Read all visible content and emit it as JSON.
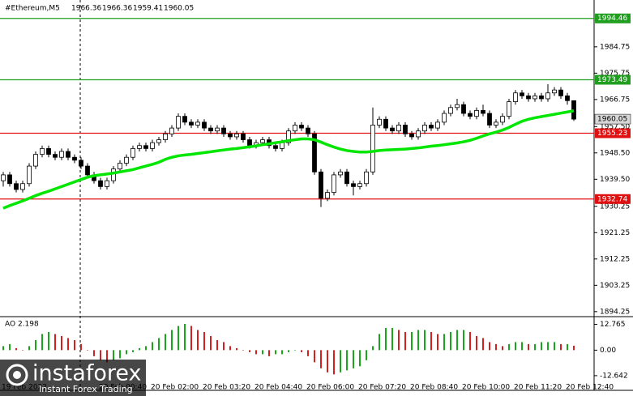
{
  "chart_data": [
    {
      "type": "candlestick",
      "title": "#Ethereum,M5",
      "categories": [
        "19 Feb 2022",
        null,
        null,
        null,
        null,
        null,
        null,
        null,
        null,
        null,
        null,
        null,
        null,
        null,
        null,
        null,
        "20 Feb 00:40",
        null,
        null,
        null,
        null,
        null,
        null,
        null,
        "20 Feb 02:00",
        null,
        null,
        null,
        null,
        null,
        null,
        null,
        "20 Feb 03:20",
        null,
        null,
        null,
        null,
        null,
        null,
        null,
        "20 Feb 04:40",
        null,
        null,
        null,
        null,
        null,
        null,
        null,
        "20 Feb 06:00",
        null,
        null,
        null,
        null,
        null,
        null,
        null,
        "20 Feb 07:20",
        null,
        null,
        null,
        null,
        null,
        null,
        null,
        "20 Feb 08:40",
        null,
        null,
        null,
        null,
        null,
        null,
        null,
        "20 Feb 10:00",
        null,
        null,
        null,
        null,
        null,
        null,
        null,
        "20 Feb 11:20",
        null,
        null,
        null,
        null,
        null,
        null,
        null,
        "20 Feb 12:40"
      ],
      "open": [
        1939,
        1941,
        1938,
        1936,
        1938,
        1944,
        1948,
        1950,
        1948,
        1947,
        1949,
        1947,
        1946,
        1944,
        1941,
        1939,
        1937,
        1939,
        1943,
        1945,
        1947,
        1950,
        1951,
        1950,
        1952,
        1953,
        1955,
        1957,
        1961,
        1959,
        1958,
        1959,
        1957,
        1956,
        1957,
        1955,
        1954,
        1955,
        1953,
        1951,
        1952,
        1953,
        1951,
        1950,
        1952,
        1956,
        1958,
        1957,
        1955,
        1942,
        1933,
        1935,
        1941,
        1942,
        1938,
        1937,
        1938,
        1942,
        1958,
        1960,
        1957,
        1956,
        1958,
        1955,
        1954,
        1956,
        1958,
        1957,
        1959,
        1962,
        1964,
        1965,
        1962,
        1961,
        1963,
        1962,
        1958,
        1959,
        1961,
        1966,
        1969,
        1968,
        1967,
        1968,
        1967,
        1969,
        1970,
        1968,
        1966.36
      ],
      "high": [
        1942,
        1942,
        1939,
        1939,
        1945,
        1949,
        1951,
        1951,
        1949,
        1950,
        1950,
        1948,
        1947,
        1945,
        1942,
        1940,
        1940,
        1944,
        1946,
        1948,
        1951,
        1952,
        1952,
        1953,
        1954,
        1956,
        1958,
        1962,
        1962,
        1960,
        1960,
        1960,
        1958,
        1958,
        1958,
        1956,
        1956,
        1956,
        1954,
        1953,
        1954,
        1954,
        1952,
        1953,
        1957,
        1959,
        1959,
        1958,
        1956,
        1943,
        1936,
        1942,
        1943,
        1943,
        1939,
        1939,
        1943,
        1964,
        1961,
        1961,
        1958,
        1959,
        1959,
        1956,
        1957,
        1959,
        1959,
        1960,
        1963,
        1965,
        1967,
        1966,
        1963,
        1964,
        1965,
        1963,
        1960,
        1962,
        1967,
        1970,
        1970,
        1969,
        1969,
        1969,
        1972,
        1971,
        1971,
        1969,
        1966.36
      ],
      "low": [
        1937,
        1937,
        1935,
        1935,
        1937,
        1943,
        1947,
        1947,
        1946,
        1946,
        1946,
        1945,
        1943,
        1940,
        1938,
        1936,
        1936,
        1938,
        1942,
        1944,
        1946,
        1949,
        1949,
        1949,
        1951,
        1952,
        1954,
        1956,
        1958,
        1957,
        1957,
        1956,
        1955,
        1955,
        1954,
        1953,
        1953,
        1952,
        1950,
        1950,
        1951,
        1950,
        1949,
        1949,
        1951,
        1955,
        1956,
        1954,
        1941,
        1930,
        1932,
        1934,
        1940,
        1937,
        1934,
        1936,
        1937,
        1941,
        1957,
        1956,
        1955,
        1955,
        1954,
        1953,
        1953,
        1955,
        1956,
        1956,
        1958,
        1961,
        1963,
        1961,
        1960,
        1960,
        1961,
        1957,
        1957,
        1958,
        1960,
        1965,
        1967,
        1966,
        1966,
        1966,
        1966,
        1968,
        1967,
        1965,
        1959.41
      ],
      "close": [
        1941,
        1938,
        1936,
        1938,
        1944,
        1948,
        1950,
        1948,
        1947,
        1949,
        1947,
        1946,
        1944,
        1941,
        1939,
        1937,
        1939,
        1943,
        1945,
        1947,
        1950,
        1951,
        1950,
        1952,
        1953,
        1955,
        1957,
        1961,
        1959,
        1958,
        1959,
        1957,
        1956,
        1957,
        1955,
        1954,
        1955,
        1953,
        1951,
        1952,
        1953,
        1951,
        1950,
        1952,
        1956,
        1958,
        1957,
        1955,
        1942,
        1933,
        1935,
        1941,
        1942,
        1938,
        1937,
        1938,
        1942,
        1958,
        1960,
        1957,
        1956,
        1958,
        1955,
        1954,
        1956,
        1958,
        1957,
        1959,
        1962,
        1964,
        1965,
        1962,
        1961,
        1963,
        1962,
        1958,
        1959,
        1961,
        1966,
        1969,
        1968,
        1967,
        1968,
        1967,
        1969,
        1970,
        1968,
        1966.36,
        1960.05
      ],
      "up_color": "#ffffff",
      "down_color": "#000000",
      "ma": {
        "color": "#00e600",
        "values": [
          1929.6,
          1930.5,
          1931.3,
          1932.1,
          1933,
          1933.9,
          1934.7,
          1935.4,
          1936.2,
          1937,
          1937.8,
          1938.6,
          1939.4,
          1940.2,
          1940.7,
          1941,
          1941.3,
          1941.6,
          1942,
          1942.4,
          1942.8,
          1943.4,
          1944,
          1944.6,
          1945.3,
          1946.3,
          1947,
          1947.5,
          1947.8,
          1948,
          1948.3,
          1948.6,
          1948.9,
          1949.2,
          1949.5,
          1949.8,
          1950,
          1950.3,
          1950.6,
          1950.9,
          1951.3,
          1951.6,
          1952,
          1952.3,
          1952.7,
          1953,
          1953.3,
          1953.3,
          1953,
          1952.2,
          1951.3,
          1950.5,
          1949.8,
          1949.3,
          1949,
          1948.8,
          1948.8,
          1949,
          1949.3,
          1949.5,
          1949.6,
          1949.7,
          1949.8,
          1950,
          1950.2,
          1950.5,
          1950.8,
          1951,
          1951.3,
          1951.6,
          1951.9,
          1952.3,
          1952.8,
          1953.5,
          1954.3,
          1955,
          1955.6,
          1956.3,
          1957.2,
          1958.3,
          1959.3,
          1960,
          1960.5,
          1960.9,
          1961.3,
          1961.7,
          1962.1,
          1962.5,
          1962.9
        ]
      },
      "hlines": [
        {
          "value": 1994.46,
          "color": "#1f9e1f"
        },
        {
          "value": 1973.49,
          "color": "#1f9e1f"
        },
        {
          "value": 1955.23,
          "color": "#e01010"
        },
        {
          "value": 1932.74,
          "color": "#e01010"
        }
      ],
      "ylim": [
        1893.1,
        2000.2
      ],
      "yticks": [
        {
          "value": 1894.25,
          "label": "1894.25"
        },
        {
          "value": 1903.25,
          "label": "1903.25"
        },
        {
          "value": 1912.25,
          "label": "1912.25"
        },
        {
          "value": 1921.25,
          "label": "1921.25"
        },
        1930.25,
        {
          "value": 1939.5,
          "label": "1939.50"
        },
        {
          "value": 1948.5,
          "label": "1948.50"
        },
        {
          "value": 1957.5,
          "label": "1957.50"
        },
        1966.75,
        1975.75,
        1984.75
      ],
      "grid": false
    },
    {
      "type": "bar",
      "title": "AO 2.198",
      "values": [
        2,
        3,
        1,
        0,
        2,
        5,
        8,
        9,
        8,
        7,
        6,
        5,
        3,
        0,
        -3,
        -5,
        -6,
        -5,
        -4,
        -2,
        -1,
        1,
        2,
        4,
        6,
        8,
        10,
        12,
        13,
        12,
        10,
        9,
        7,
        5,
        4,
        2,
        1,
        0,
        -1,
        -2,
        -2,
        -3,
        -2,
        -2,
        -1,
        0,
        -1,
        -3,
        -6,
        -9,
        -11,
        -12,
        -11,
        -10,
        -9,
        -8,
        -5,
        2,
        8,
        11,
        11,
        10,
        9,
        9,
        10,
        10,
        9,
        8,
        8,
        9,
        10,
        10,
        9,
        7,
        6,
        4,
        3,
        2,
        3,
        4,
        4,
        3,
        3,
        4,
        4,
        4,
        3,
        3,
        2.198
      ],
      "up_color": "#1aa61a",
      "down_color": "#d42020",
      "ylim": [
        -19.1,
        15.8
      ],
      "yticks": [
        12.765,
        {
          "value": 0,
          "label": "0.00"
        },
        -12.642
      ],
      "grid": false
    }
  ],
  "watermark": {
    "brand": "instaforex",
    "tagline": "Instant Forex Trading"
  }
}
